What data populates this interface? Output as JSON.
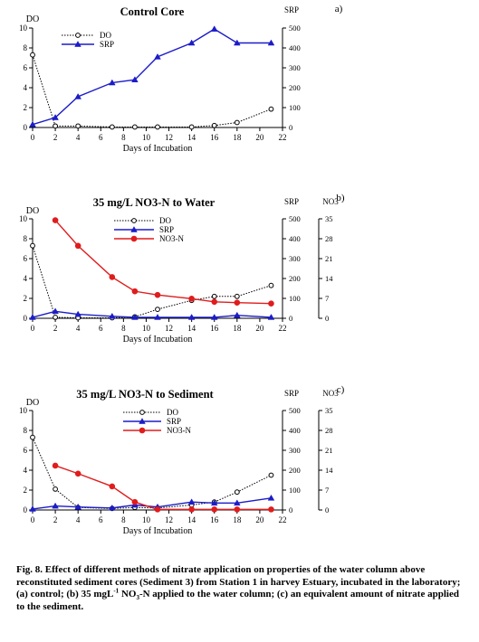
{
  "chart_data": [
    {
      "type": "line",
      "panel_label": "a)",
      "title": "Control Core",
      "xlabel": "Days of Incubation",
      "xlim": [
        0,
        22
      ],
      "xticks": [
        0,
        2,
        4,
        6,
        8,
        10,
        12,
        14,
        16,
        18,
        20,
        22
      ],
      "y_left": {
        "label": "DO",
        "lim": [
          0,
          10
        ],
        "ticks": [
          0,
          2,
          4,
          6,
          8,
          10
        ]
      },
      "y_right": [
        {
          "label": "SRP",
          "lim": [
            0,
            500
          ],
          "ticks": [
            0,
            100,
            200,
            300,
            400,
            500
          ]
        }
      ],
      "legend": {
        "position": "top-left"
      },
      "series": [
        {
          "name": "DO",
          "axis": "DO",
          "style": "dotted",
          "marker": "open-circle",
          "color": "#000000",
          "x": [
            0,
            2,
            4,
            7,
            9,
            11,
            14,
            16,
            18,
            21
          ],
          "y": [
            7.3,
            0.15,
            0.15,
            0.05,
            0.05,
            0.05,
            0.05,
            0.2,
            0.5,
            1.85
          ]
        },
        {
          "name": "SRP",
          "axis": "SRP",
          "style": "solid",
          "marker": "triangle",
          "color": "#1c1cc8",
          "x": [
            0,
            2,
            4,
            7,
            9,
            11,
            14,
            16,
            18,
            21
          ],
          "y": [
            15,
            50,
            155,
            225,
            240,
            355,
            425,
            495,
            425,
            425
          ]
        }
      ]
    },
    {
      "type": "line",
      "panel_label": "b)",
      "title": "35   mg/L NO3-N to Water",
      "xlabel": "Days of Incubation",
      "xlim": [
        0,
        22
      ],
      "xticks": [
        0,
        2,
        4,
        6,
        8,
        10,
        12,
        14,
        16,
        18,
        20,
        22
      ],
      "y_left": {
        "label": "DO",
        "lim": [
          0,
          10
        ],
        "ticks": [
          0,
          2,
          4,
          6,
          8,
          10
        ]
      },
      "y_right": [
        {
          "label": "SRP",
          "lim": [
            0,
            500
          ],
          "ticks": [
            0,
            100,
            200,
            300,
            400,
            500
          ]
        },
        {
          "label": "NO3",
          "lim": [
            0,
            35
          ],
          "ticks": [
            0,
            7,
            14,
            21,
            28,
            35
          ]
        }
      ],
      "legend": {
        "position": "top-center"
      },
      "series": [
        {
          "name": "DO",
          "axis": "DO",
          "style": "dotted",
          "marker": "open-circle",
          "color": "#000000",
          "x": [
            0,
            2,
            4,
            7,
            9,
            11,
            14,
            16,
            18,
            21
          ],
          "y": [
            7.3,
            0.1,
            0.05,
            0.05,
            0.15,
            0.9,
            1.8,
            2.2,
            2.2,
            3.3
          ]
        },
        {
          "name": "SRP",
          "axis": "SRP",
          "style": "solid",
          "marker": "triangle",
          "color": "#1c1cc8",
          "x": [
            0,
            2,
            4,
            7,
            9,
            11,
            14,
            16,
            18,
            21
          ],
          "y": [
            5,
            35,
            20,
            10,
            5,
            5,
            5,
            5,
            15,
            5
          ]
        },
        {
          "name": "NO3-N",
          "axis": "NO3",
          "style": "solid",
          "marker": "filled-circle",
          "color": "#e01c1c",
          "x": [
            2,
            4,
            7,
            9,
            11,
            14,
            16,
            18,
            21
          ],
          "y": [
            34.5,
            25.5,
            14.5,
            9.5,
            8.2,
            6.9,
            5.8,
            5.5,
            5.2
          ]
        }
      ]
    },
    {
      "type": "line",
      "panel_label": "c)",
      "title": "35   mg/L NO3-N to Sediment",
      "xlabel": "Days of Incubation",
      "xlim": [
        0,
        22
      ],
      "xticks": [
        0,
        2,
        4,
        6,
        8,
        10,
        12,
        14,
        16,
        18,
        20,
        22
      ],
      "y_left": {
        "label": "DO",
        "lim": [
          0,
          10
        ],
        "ticks": [
          0,
          2,
          4,
          6,
          8,
          10
        ]
      },
      "y_right": [
        {
          "label": "SRP",
          "lim": [
            0,
            500
          ],
          "ticks": [
            0,
            100,
            200,
            300,
            400,
            500
          ]
        },
        {
          "label": "NO3",
          "lim": [
            0,
            35
          ],
          "ticks": [
            0,
            7,
            14,
            21,
            28,
            35
          ]
        }
      ],
      "legend": {
        "position": "top-center"
      },
      "series": [
        {
          "name": "DO",
          "axis": "DO",
          "style": "dotted",
          "marker": "open-circle",
          "color": "#000000",
          "x": [
            0,
            2,
            4,
            7,
            9,
            11,
            14,
            16,
            18,
            21
          ],
          "y": [
            7.3,
            2.1,
            0.25,
            0.15,
            0.25,
            0.2,
            0.5,
            0.8,
            1.8,
            3.5
          ]
        },
        {
          "name": "SRP",
          "axis": "SRP",
          "style": "solid",
          "marker": "triangle",
          "color": "#1c1cc8",
          "x": [
            0,
            2,
            4,
            7,
            9,
            11,
            14,
            16,
            18,
            21
          ],
          "y": [
            5,
            20,
            15,
            10,
            25,
            15,
            40,
            35,
            35,
            60
          ]
        },
        {
          "name": "NO3-N",
          "axis": "NO3",
          "style": "solid",
          "marker": "filled-circle",
          "color": "#e01c1c",
          "x": [
            2,
            4,
            7,
            9,
            11,
            14,
            16,
            18,
            21
          ],
          "y": [
            15.6,
            12.8,
            8.3,
            2.8,
            0.2,
            0.2,
            0.2,
            0.2,
            0.2
          ]
        }
      ]
    }
  ],
  "caption": {
    "part1": "Fig. 8. Effect of different methods of nitrate application on properties of the water column above reconstituted sediment cores (Sediment 3) from Station 1 in harvey Estuary, incubated in the laboratory; (a) control; (b) 35 mgL",
    "sup": "-1",
    "part2": " NO",
    "sub": "3",
    "part3": "-N applied to the water column; (c) an equivalent amount of nitrate applied to the sediment."
  }
}
